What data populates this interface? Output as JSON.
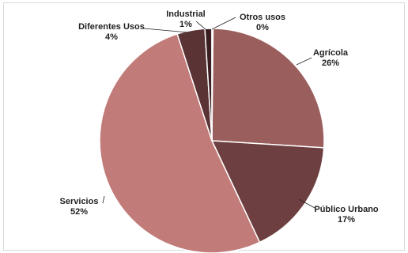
{
  "chart_data": {
    "type": "pie",
    "title": "",
    "start_angle_deg": 0,
    "direction": "clockwise",
    "slices": [
      {
        "name": "Agrícola",
        "value": 26,
        "label": "26%",
        "color": "#9a5f5d"
      },
      {
        "name": "Público Urbano",
        "value": 17,
        "label": "17%",
        "color": "#6e3f40"
      },
      {
        "name": "Servicios",
        "value": 52,
        "label": "52%",
        "color": "#c17b78"
      },
      {
        "name": "Diferentes Usos",
        "value": 4,
        "label": "4%",
        "color": "#5a3335"
      },
      {
        "name": "Industrial",
        "value": 1,
        "label": "1%",
        "color": "#3a1e22"
      },
      {
        "name": "Otros usos",
        "value": 0,
        "label": "0%",
        "color": "#e8c9c6"
      }
    ]
  }
}
